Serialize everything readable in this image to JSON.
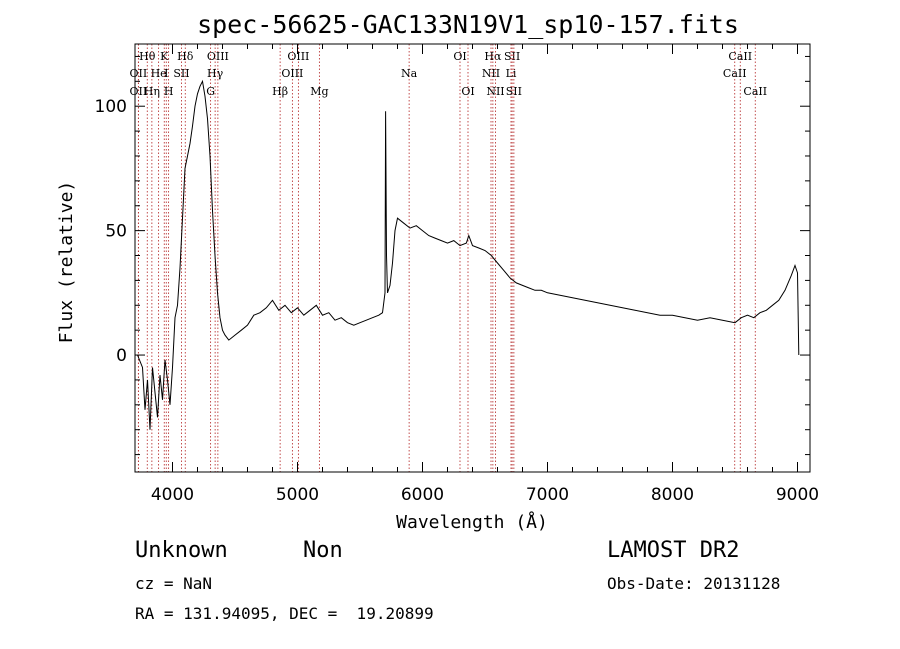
{
  "chart_data": {
    "type": "line",
    "title": "spec-56625-GAC133N19V1_sp10-157.fits",
    "xlabel": "Wavelength (Å)",
    "ylabel": "Flux (relative)",
    "xlim": [
      3700,
      9100
    ],
    "ylim": [
      -47,
      125
    ],
    "xticks": [
      4000,
      5000,
      6000,
      7000,
      8000,
      9000
    ],
    "yticks": [
      0,
      50,
      100
    ],
    "grid": false,
    "series": [
      {
        "name": "flux",
        "x": [
          3720,
          3760,
          3780,
          3800,
          3820,
          3840,
          3860,
          3880,
          3900,
          3920,
          3940,
          3960,
          3980,
          4000,
          4020,
          4040,
          4060,
          4080,
          4100,
          4120,
          4140,
          4160,
          4180,
          4200,
          4220,
          4240,
          4260,
          4280,
          4300,
          4320,
          4340,
          4360,
          4380,
          4400,
          4420,
          4450,
          4500,
          4550,
          4600,
          4650,
          4700,
          4750,
          4800,
          4850,
          4900,
          4950,
          5000,
          5050,
          5100,
          5150,
          5200,
          5250,
          5300,
          5350,
          5400,
          5450,
          5500,
          5550,
          5600,
          5650,
          5680,
          5700,
          5705,
          5712,
          5720,
          5740,
          5760,
          5780,
          5800,
          5850,
          5900,
          5950,
          6000,
          6050,
          6100,
          6150,
          6200,
          6250,
          6300,
          6350,
          6370,
          6400,
          6450,
          6500,
          6550,
          6600,
          6650,
          6700,
          6750,
          6800,
          6850,
          6900,
          6950,
          7000,
          7100,
          7200,
          7300,
          7400,
          7500,
          7600,
          7700,
          7800,
          7900,
          8000,
          8100,
          8200,
          8300,
          8400,
          8500,
          8550,
          8600,
          8650,
          8700,
          8750,
          8800,
          8850,
          8900,
          8950,
          8980,
          9000,
          9010
        ],
        "y": [
          0,
          -5,
          -22,
          -10,
          -30,
          -5,
          -15,
          -25,
          -8,
          -18,
          -2,
          -10,
          -20,
          -5,
          15,
          20,
          35,
          55,
          75,
          80,
          85,
          92,
          100,
          105,
          108,
          110,
          104,
          95,
          80,
          58,
          40,
          25,
          15,
          10,
          8,
          6,
          8,
          10,
          12,
          16,
          17,
          19,
          22,
          18,
          20,
          17,
          19,
          16,
          18,
          20,
          16,
          17,
          14,
          15,
          13,
          12,
          13,
          14,
          15,
          16,
          17,
          25,
          98,
          40,
          25,
          28,
          37,
          50,
          55,
          53,
          51,
          52,
          50,
          48,
          47,
          46,
          45,
          46,
          44,
          45,
          48,
          44,
          43,
          42,
          40,
          37,
          34,
          31,
          29,
          28,
          27,
          26,
          26,
          25,
          24,
          23,
          22,
          21,
          20,
          19,
          18,
          17,
          16,
          16,
          15,
          14,
          15,
          14,
          13,
          15,
          16,
          15,
          17,
          18,
          20,
          22,
          26,
          32,
          36,
          33,
          0
        ],
        "color": "#000000"
      }
    ],
    "spectral_lines": [
      {
        "name": "Hθ",
        "x": 3798,
        "row": 0
      },
      {
        "name": "OII",
        "x": 3727,
        "row": 1
      },
      {
        "name": "OII",
        "x": 3727,
        "row": 2
      },
      {
        "name": "He",
        "x": 3889,
        "row": 1
      },
      {
        "name": "Hη",
        "x": 3835,
        "row": 2
      },
      {
        "name": "K",
        "x": 3934,
        "row": 0
      },
      {
        "name": "I",
        "x": 3950,
        "row": 1
      },
      {
        "name": "H",
        "x": 3969,
        "row": 2
      },
      {
        "name": "Hδ",
        "x": 4102,
        "row": 0
      },
      {
        "name": "SII",
        "x": 4072,
        "row": 1
      },
      {
        "name": "OIII",
        "x": 4363,
        "row": 0
      },
      {
        "name": "Hγ",
        "x": 4341,
        "row": 1
      },
      {
        "name": "G",
        "x": 4305,
        "row": 2
      },
      {
        "name": "OIII",
        "x": 5007,
        "row": 0
      },
      {
        "name": "OIII",
        "x": 4959,
        "row": 1
      },
      {
        "name": "Hβ",
        "x": 4861,
        "row": 2
      },
      {
        "name": "Mg",
        "x": 5175,
        "row": 2
      },
      {
        "name": "Na",
        "x": 5893,
        "row": 1
      },
      {
        "name": "OI",
        "x": 6300,
        "row": 0
      },
      {
        "name": "OI",
        "x": 6364,
        "row": 2
      },
      {
        "name": "Hα",
        "x": 6563,
        "row": 0
      },
      {
        "name": "SII",
        "x": 6717,
        "row": 0
      },
      {
        "name": "NII",
        "x": 6548,
        "row": 1
      },
      {
        "name": "Li",
        "x": 6708,
        "row": 1
      },
      {
        "name": "NII",
        "x": 6584,
        "row": 2
      },
      {
        "name": "SII",
        "x": 6731,
        "row": 2
      },
      {
        "name": "CaII",
        "x": 8542,
        "row": 0
      },
      {
        "name": "CaII",
        "x": 8498,
        "row": 1
      },
      {
        "name": "CaII",
        "x": 8662,
        "row": 2
      }
    ]
  },
  "footer": {
    "object_class": "Unknown",
    "subclass": "Non",
    "survey": "LAMOST DR2",
    "redshift": "cz = NaN",
    "obs_date": "Obs-Date: 20131128",
    "coords": "RA = 131.94095, DEC =  19.20899"
  }
}
